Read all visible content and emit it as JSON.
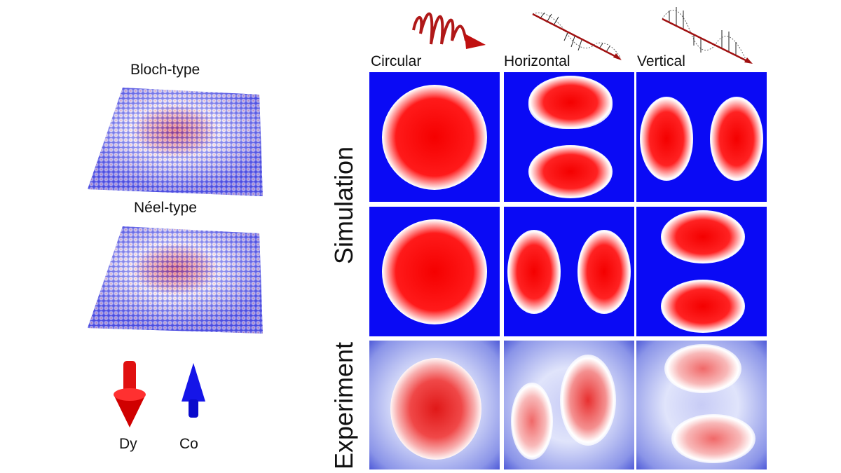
{
  "left": {
    "bloch_label": "Bloch-type",
    "neel_label": "Néel-type",
    "dy_label": "Dy",
    "co_label": "Co"
  },
  "columns": [
    "Circular",
    "Horizontal",
    "Vertical"
  ],
  "rows": [
    "Simulation",
    "Experiment"
  ],
  "colors": {
    "blue": "#0a0af5",
    "red": "#f50000",
    "arrow": "#a01010"
  }
}
